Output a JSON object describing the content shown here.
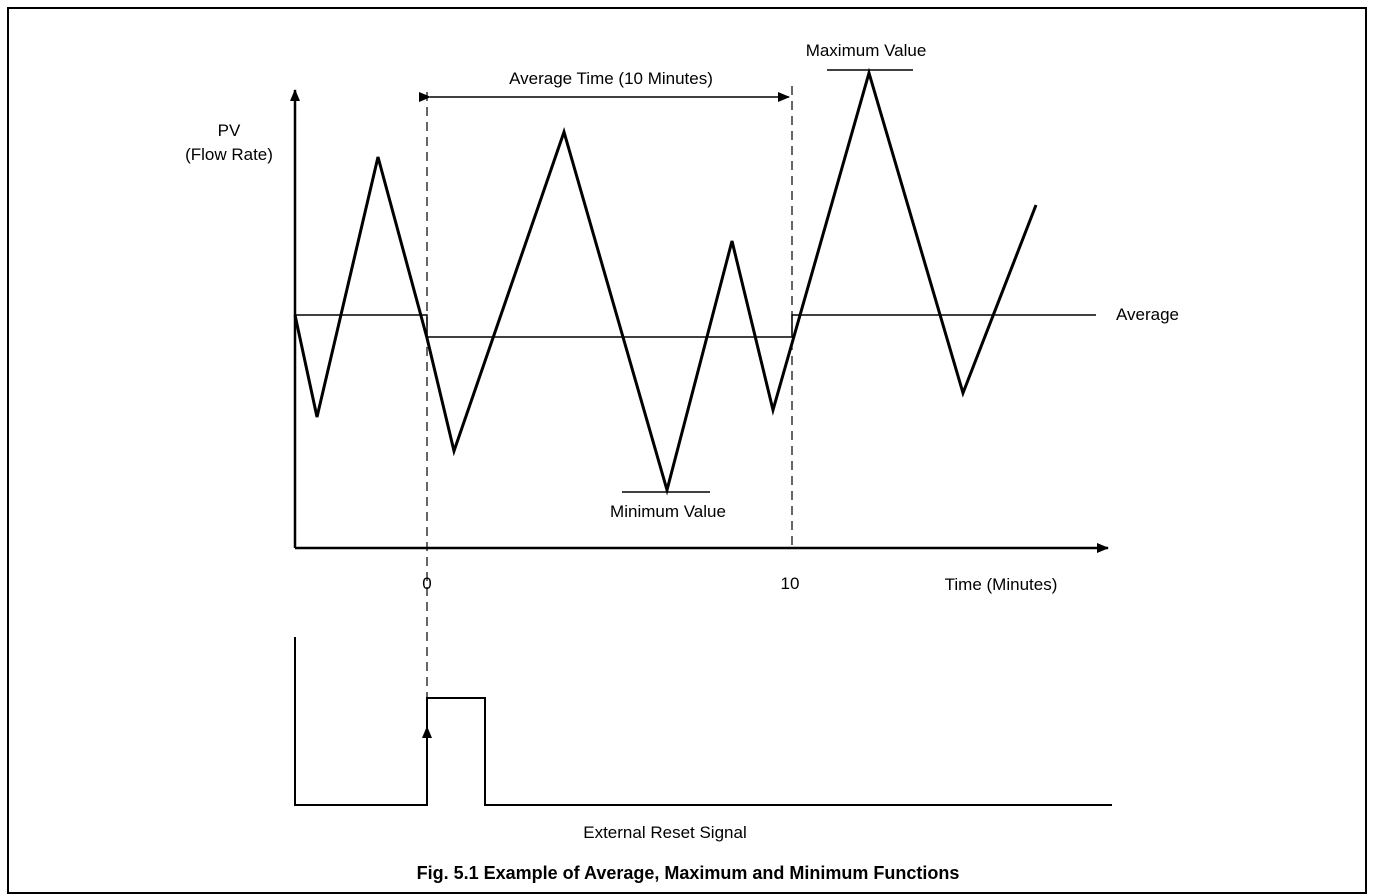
{
  "diagram": {
    "y_axis_label_line1": "PV",
    "y_axis_label_line2": "(Flow Rate)",
    "x_axis_label": "Time (Minutes)",
    "tick_zero": "0",
    "tick_ten": "10",
    "average_time_label": "Average Time (10 Minutes)",
    "maximum_label": "Maximum Value",
    "minimum_label": "Minimum Value",
    "average_label": "Average",
    "reset_signal_label": "External Reset Signal",
    "caption": "Fig. 5.1 Example of Average, Maximum and Minimum Functions"
  },
  "colors": {
    "line": "#000000",
    "background": "#ffffff"
  }
}
